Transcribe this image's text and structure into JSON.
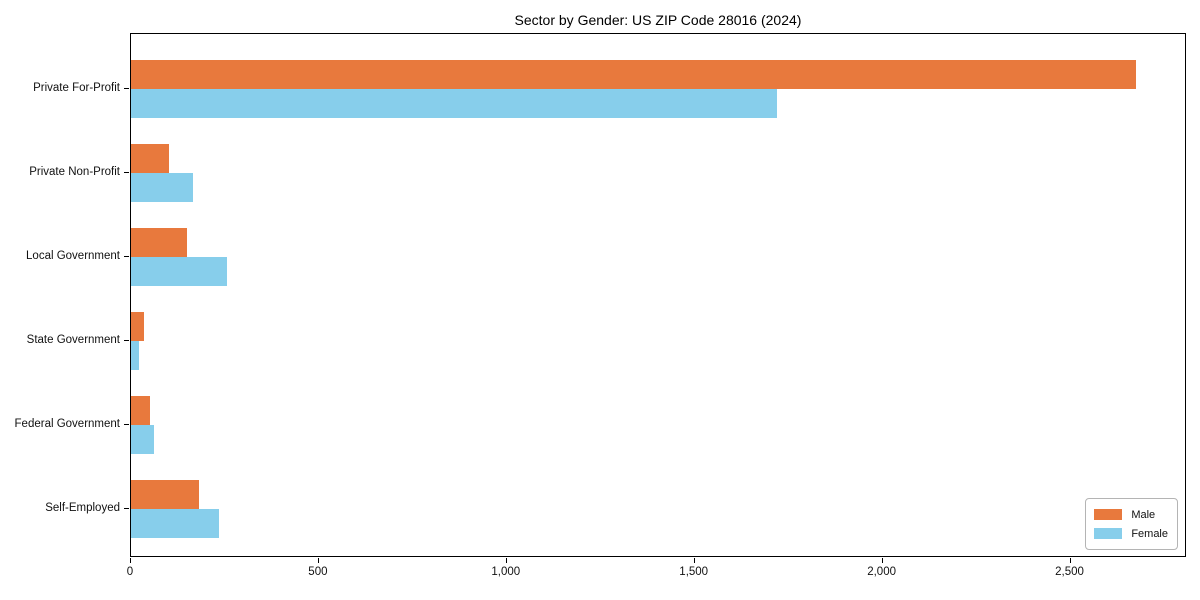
{
  "chart_data": {
    "type": "bar",
    "orientation": "horizontal",
    "title": "Sector by Gender: US ZIP Code 28016 (2024)",
    "categories": [
      "Private For-Profit",
      "Private Non-Profit",
      "Local Government",
      "State Government",
      "Federal Government",
      "Self-Employed"
    ],
    "series": [
      {
        "name": "Male",
        "color": "#E8793D",
        "values": [
          2675,
          100,
          150,
          35,
          50,
          180
        ]
      },
      {
        "name": "Female",
        "color": "#87CEEB",
        "values": [
          1720,
          165,
          255,
          20,
          60,
          235
        ]
      }
    ],
    "xlabel": "",
    "ylabel": "",
    "xlim": [
      0,
      2810
    ],
    "xticks": [
      0,
      500,
      1000,
      1500,
      2000,
      2500
    ],
    "xtick_labels": [
      "0",
      "500",
      "1,000",
      "1,500",
      "2,000",
      "2,500"
    ],
    "grid": false,
    "legend": {
      "position": "lower right",
      "entries": [
        "Male",
        "Female"
      ]
    }
  }
}
